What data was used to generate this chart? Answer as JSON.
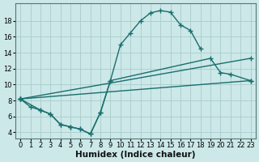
{
  "background_color": "#cce8e8",
  "grid_color": "#aacccc",
  "line_color": "#1a6e6e",
  "marker": "+",
  "marker_size": 4,
  "linewidth": 1.0,
  "xlabel": "Humidex (Indice chaleur)",
  "xlabel_fontsize": 7.5,
  "tick_fontsize": 6,
  "xlim": [
    -0.5,
    23.5
  ],
  "ylim": [
    3.2,
    20.2
  ],
  "yticks": [
    4,
    6,
    8,
    10,
    12,
    14,
    16,
    18
  ],
  "xticks": [
    0,
    1,
    2,
    3,
    4,
    5,
    6,
    7,
    8,
    9,
    10,
    11,
    12,
    13,
    14,
    15,
    16,
    17,
    18,
    19,
    20,
    21,
    22,
    23
  ],
  "series1_x": [
    0,
    1,
    2,
    3,
    4,
    5,
    6,
    7,
    8,
    9,
    10,
    11,
    12,
    13,
    14,
    15,
    16,
    17,
    18
  ],
  "series1_y": [
    8.2,
    7.2,
    6.8,
    6.3,
    5.0,
    4.7,
    4.4,
    3.8,
    6.5,
    10.5,
    15.0,
    16.5,
    18.0,
    19.0,
    19.3,
    19.1,
    17.5,
    16.8,
    14.5
  ],
  "series2_x": [
    0,
    2,
    3,
    4,
    5,
    6,
    7,
    8,
    9,
    19,
    20,
    21,
    23
  ],
  "series2_y": [
    8.2,
    6.8,
    6.3,
    5.0,
    4.7,
    4.4,
    3.8,
    6.5,
    10.5,
    13.3,
    11.5,
    11.3,
    10.5
  ],
  "series3_x": [
    0,
    23
  ],
  "series3_y": [
    8.2,
    10.5
  ],
  "series4_x": [
    0,
    23
  ],
  "series4_y": [
    8.2,
    13.3
  ]
}
